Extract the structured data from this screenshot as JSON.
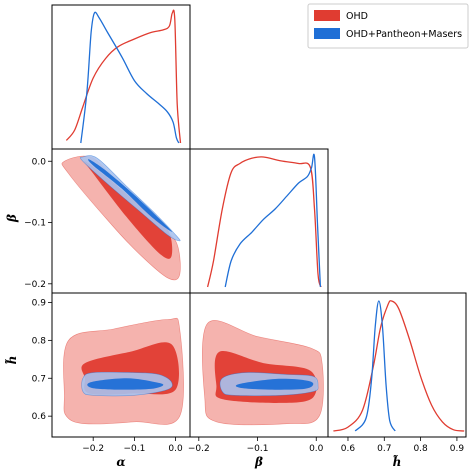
{
  "chart_data": {
    "type": "corner",
    "parameters": [
      {
        "label": "α",
        "range": [
          -0.3,
          0.035
        ],
        "ticks": [
          -0.2,
          -0.1,
          0.0
        ],
        "tick_labels": [
          "−0.2",
          "−0.1",
          "0.0"
        ]
      },
      {
        "label": "β",
        "range": [
          -0.215,
          0.02
        ],
        "ticks": [
          -0.2,
          -0.1,
          0.0
        ],
        "tick_labels": [
          "−0.2",
          "−0.1",
          "0.0"
        ]
      },
      {
        "label": "h̃",
        "range": [
          0.545,
          0.925
        ],
        "ticks": [
          0.6,
          0.7,
          0.8,
          0.9
        ],
        "tick_labels": [
          "0.6",
          "0.7",
          "0.8",
          "0.9"
        ]
      }
    ],
    "legend": {
      "position": "top-right",
      "entries": [
        "OHD",
        "OHD+Pantheon+Masers"
      ]
    },
    "colors": {
      "ohd": "#e03c31",
      "ohd_light": "#f3a6a0",
      "combined": "#1f6fd6",
      "combined_light": "#a8c2ee"
    },
    "series": [
      {
        "name": "OHD",
        "marginals": {
          "alpha": [
            [
              -0.265,
              0.02
            ],
            [
              -0.245,
              0.1
            ],
            [
              -0.225,
              0.28
            ],
            [
              -0.2,
              0.5
            ],
            [
              -0.17,
              0.65
            ],
            [
              -0.14,
              0.74
            ],
            [
              -0.1,
              0.8
            ],
            [
              -0.06,
              0.85
            ],
            [
              -0.03,
              0.87
            ],
            [
              -0.015,
              0.9
            ],
            [
              -0.008,
              1.0
            ],
            [
              -0.002,
              0.95
            ],
            [
              0.004,
              0.3
            ],
            [
              0.012,
              0.0
            ]
          ],
          "beta": [
            [
              -0.185,
              0.0
            ],
            [
              -0.175,
              0.2
            ],
            [
              -0.16,
              0.6
            ],
            [
              -0.145,
              0.88
            ],
            [
              -0.13,
              0.95
            ],
            [
              -0.11,
              0.99
            ],
            [
              -0.09,
              1.0
            ],
            [
              -0.06,
              0.97
            ],
            [
              -0.03,
              0.95
            ],
            [
              -0.01,
              0.92
            ],
            [
              -0.003,
              0.6
            ],
            [
              0.003,
              0.1
            ],
            [
              0.008,
              0.0
            ]
          ],
          "h": [
            [
              0.56,
              0.0
            ],
            [
              0.6,
              0.03
            ],
            [
              0.64,
              0.16
            ],
            [
              0.67,
              0.5
            ],
            [
              0.69,
              0.8
            ],
            [
              0.71,
              0.97
            ],
            [
              0.72,
              1.0
            ],
            [
              0.74,
              0.94
            ],
            [
              0.77,
              0.7
            ],
            [
              0.8,
              0.42
            ],
            [
              0.83,
              0.2
            ],
            [
              0.86,
              0.07
            ],
            [
              0.89,
              0.01
            ],
            [
              0.92,
              0.0
            ]
          ]
        },
        "joint": {
          "alpha_beta": {
            "outer": [
              [
                -0.27,
                0.0
              ],
              [
                -0.2,
                0.005
              ],
              [
                -0.13,
                -0.05
              ],
              [
                -0.06,
                -0.1
              ],
              [
                0.0,
                -0.13
              ],
              [
                0.01,
                -0.185
              ],
              [
                -0.02,
                -0.19
              ],
              [
                -0.09,
                -0.15
              ],
              [
                -0.16,
                -0.1
              ],
              [
                -0.26,
                -0.02
              ]
            ],
            "inner": [
              [
                -0.22,
                0.0
              ],
              [
                -0.16,
                -0.03
              ],
              [
                -0.09,
                -0.07
              ],
              [
                -0.02,
                -0.11
              ],
              [
                -0.01,
                -0.155
              ],
              [
                -0.04,
                -0.15
              ],
              [
                -0.12,
                -0.09
              ],
              [
                -0.2,
                -0.02
              ]
            ]
          },
          "alpha_h": {
            "outer": [
              [
                -0.27,
                0.65
              ],
              [
                -0.26,
                0.8
              ],
              [
                -0.15,
                0.83
              ],
              [
                -0.02,
                0.855
              ],
              [
                0.01,
                0.83
              ],
              [
                0.01,
                0.6
              ],
              [
                -0.1,
                0.585
              ],
              [
                -0.22,
                0.58
              ],
              [
                -0.265,
                0.6
              ]
            ],
            "inner": [
              [
                -0.22,
                0.7
              ],
              [
                -0.22,
                0.74
              ],
              [
                -0.11,
                0.77
              ],
              [
                -0.01,
                0.79
              ],
              [
                0.0,
                0.67
              ],
              [
                -0.1,
                0.66
              ],
              [
                -0.21,
                0.66
              ]
            ]
          },
          "beta_h": {
            "outer": [
              [
                -0.19,
                0.65
              ],
              [
                -0.185,
                0.845
              ],
              [
                -0.1,
                0.81
              ],
              [
                -0.01,
                0.78
              ],
              [
                0.01,
                0.74
              ],
              [
                0.005,
                0.6
              ],
              [
                -0.05,
                0.58
              ],
              [
                -0.17,
                0.585
              ]
            ],
            "inner": [
              [
                -0.17,
                0.68
              ],
              [
                -0.165,
                0.77
              ],
              [
                -0.09,
                0.74
              ],
              [
                -0.01,
                0.72
              ],
              [
                -0.005,
                0.65
              ],
              [
                -0.06,
                0.635
              ],
              [
                -0.16,
                0.645
              ]
            ]
          }
        }
      },
      {
        "name": "OHD+Pantheon+Masers",
        "marginals": {
          "alpha": [
            [
              -0.23,
              0.0
            ],
            [
              -0.215,
              0.4
            ],
            [
              -0.205,
              0.85
            ],
            [
              -0.197,
              1.0
            ],
            [
              -0.185,
              0.96
            ],
            [
              -0.165,
              0.85
            ],
            [
              -0.13,
              0.66
            ],
            [
              -0.1,
              0.48
            ],
            [
              -0.07,
              0.38
            ],
            [
              -0.04,
              0.3
            ],
            [
              -0.02,
              0.24
            ],
            [
              -0.006,
              0.16
            ],
            [
              0.002,
              0.04
            ],
            [
              0.008,
              0.0
            ]
          ],
          "beta": [
            [
              -0.155,
              0.0
            ],
            [
              -0.145,
              0.2
            ],
            [
              -0.13,
              0.33
            ],
            [
              -0.11,
              0.42
            ],
            [
              -0.09,
              0.52
            ],
            [
              -0.07,
              0.6
            ],
            [
              -0.05,
              0.7
            ],
            [
              -0.03,
              0.8
            ],
            [
              -0.015,
              0.85
            ],
            [
              -0.008,
              0.92
            ],
            [
              -0.003,
              1.0
            ],
            [
              0.002,
              0.5
            ],
            [
              0.007,
              0.0
            ]
          ],
          "h": [
            [
              0.62,
              0.0
            ],
            [
              0.65,
              0.1
            ],
            [
              0.665,
              0.4
            ],
            [
              0.675,
              0.8
            ],
            [
              0.685,
              1.0
            ],
            [
              0.695,
              0.8
            ],
            [
              0.705,
              0.35
            ],
            [
              0.715,
              0.08
            ],
            [
              0.73,
              0.0
            ]
          ]
        },
        "joint": {
          "alpha_beta": {
            "outer": [
              [
                -0.225,
                0.007
              ],
              [
                -0.19,
                0.005
              ],
              [
                -0.12,
                -0.04
              ],
              [
                -0.05,
                -0.085
              ],
              [
                0.0,
                -0.12
              ],
              [
                0.01,
                -0.13
              ],
              [
                -0.02,
                -0.12
              ],
              [
                -0.09,
                -0.08
              ],
              [
                -0.16,
                -0.04
              ],
              [
                -0.225,
                0.0
              ]
            ],
            "inner": [
              [
                -0.21,
                0.003
              ],
              [
                -0.17,
                -0.015
              ],
              [
                -0.1,
                -0.055
              ],
              [
                -0.03,
                -0.1
              ],
              [
                -0.01,
                -0.115
              ],
              [
                -0.06,
                -0.09
              ],
              [
                -0.13,
                -0.045
              ],
              [
                -0.2,
                -0.007
              ]
            ]
          },
          "alpha_h": {
            "outer": [
              [
                -0.225,
                0.7
              ],
              [
                -0.2,
                0.715
              ],
              [
                -0.1,
                0.715
              ],
              [
                -0.04,
                0.71
              ],
              [
                -0.01,
                0.69
              ],
              [
                -0.02,
                0.67
              ],
              [
                -0.1,
                0.655
              ],
              [
                -0.2,
                0.655
              ],
              [
                -0.225,
                0.665
              ]
            ],
            "inner": [
              [
                -0.205,
                0.69
              ],
              [
                -0.12,
                0.7
              ],
              [
                -0.05,
                0.69
              ],
              [
                -0.03,
                0.682
              ],
              [
                -0.06,
                0.672
              ],
              [
                -0.14,
                0.67
              ],
              [
                -0.205,
                0.675
              ]
            ]
          },
          "beta_h": {
            "outer": [
              [
                -0.16,
                0.7
              ],
              [
                -0.12,
                0.715
              ],
              [
                -0.05,
                0.71
              ],
              [
                -0.005,
                0.705
              ],
              [
                0.003,
                0.68
              ],
              [
                -0.005,
                0.665
              ],
              [
                -0.06,
                0.655
              ],
              [
                -0.14,
                0.655
              ],
              [
                -0.16,
                0.665
              ]
            ],
            "inner": [
              [
                -0.13,
                0.685
              ],
              [
                -0.07,
                0.698
              ],
              [
                -0.02,
                0.695
              ],
              [
                -0.005,
                0.685
              ],
              [
                -0.02,
                0.672
              ],
              [
                -0.08,
                0.67
              ],
              [
                -0.13,
                0.675
              ]
            ]
          }
        }
      }
    ]
  }
}
